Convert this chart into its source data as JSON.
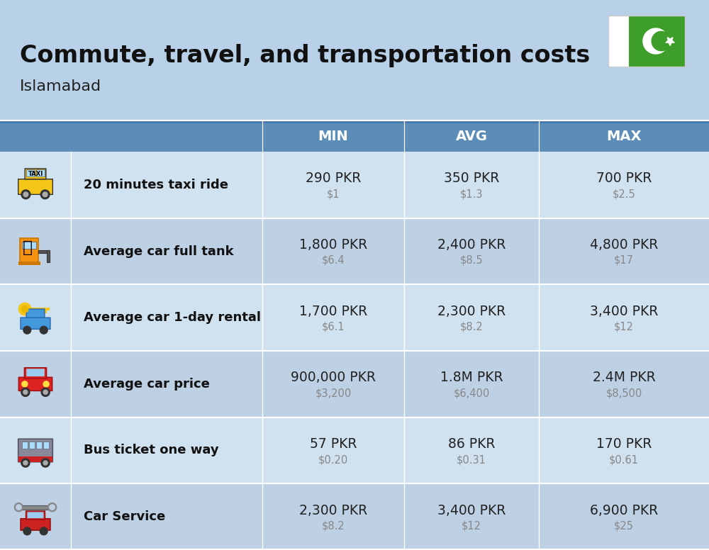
{
  "title": "Commute, travel, and transportation costs",
  "subtitle": "Islamabad",
  "bg_color": "#b8d0e8",
  "header_color": "#5b8db8",
  "header_text_color": "#ffffff",
  "row_bg_light": "#d0e2f0",
  "row_bg_dark": "#bdd0e4",
  "divider_color": "#ffffff",
  "label_color": "#111111",
  "value_color": "#222222",
  "sub_value_color": "#888888",
  "col_headers": [
    "MIN",
    "AVG",
    "MAX"
  ],
  "rows": [
    {
      "label": "20 minutes taxi ride",
      "min_pkr": "290 PKR",
      "min_usd": "$1",
      "avg_pkr": "350 PKR",
      "avg_usd": "$1.3",
      "max_pkr": "700 PKR",
      "max_usd": "$2.5"
    },
    {
      "label": "Average car full tank",
      "min_pkr": "1,800 PKR",
      "min_usd": "$6.4",
      "avg_pkr": "2,400 PKR",
      "avg_usd": "$8.5",
      "max_pkr": "4,800 PKR",
      "max_usd": "$17"
    },
    {
      "label": "Average car 1-day rental",
      "min_pkr": "1,700 PKR",
      "min_usd": "$6.1",
      "avg_pkr": "2,300 PKR",
      "avg_usd": "$8.2",
      "max_pkr": "3,400 PKR",
      "max_usd": "$12"
    },
    {
      "label": "Average car price",
      "min_pkr": "900,000 PKR",
      "min_usd": "$3,200",
      "avg_pkr": "1.8M PKR",
      "avg_usd": "$6,400",
      "max_pkr": "2.4M PKR",
      "max_usd": "$8,500"
    },
    {
      "label": "Bus ticket one way",
      "min_pkr": "57 PKR",
      "min_usd": "$0.20",
      "avg_pkr": "86 PKR",
      "avg_usd": "$0.31",
      "max_pkr": "170 PKR",
      "max_usd": "$0.61"
    },
    {
      "label": "Car Service",
      "min_pkr": "2,300 PKR",
      "min_usd": "$8.2",
      "avg_pkr": "3,400 PKR",
      "avg_usd": "$12",
      "max_pkr": "6,900 PKR",
      "max_usd": "$25"
    }
  ],
  "flag_green": "#3d9e2a",
  "flag_white": "#ffffff",
  "icon_row_colors": [
    "#d8e8f4",
    "#cfe0ef",
    "#c8daec",
    "#c2d5e8",
    "#bccfe5",
    "#b6cae2"
  ]
}
